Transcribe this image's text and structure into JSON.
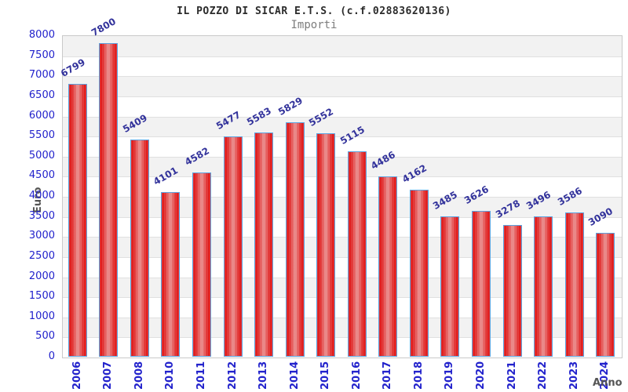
{
  "chart_data": {
    "type": "bar",
    "title": "IL POZZO DI SICAR E.T.S. (c.f.02883620136)",
    "subtitle": "Importi",
    "xlabel": "Anno",
    "ylabel": "Euro",
    "categories": [
      "2006",
      "2007",
      "2008",
      "2010",
      "2011",
      "2012",
      "2013",
      "2014",
      "2015",
      "2016",
      "2017",
      "2018",
      "2019",
      "2020",
      "2021",
      "2022",
      "2023",
      "2024"
    ],
    "values": [
      6799,
      7800,
      5409,
      4101,
      4582,
      5477,
      5583,
      5829,
      5552,
      5115,
      4486,
      4162,
      3485,
      3626,
      3278,
      3496,
      3586,
      3090
    ],
    "yticks": [
      0,
      500,
      1000,
      1500,
      2000,
      2500,
      3000,
      3500,
      4000,
      4500,
      5000,
      5500,
      6000,
      6500,
      7000,
      7500,
      8000
    ],
    "ylim": [
      0,
      8000
    ],
    "ytick_step": 500,
    "grid": "horizontal-bands-alternating",
    "legend": "none",
    "bar_labels_rotated": true,
    "colors": {
      "title": "#2b2b2b",
      "subtitle": "#7d7d7d",
      "axis_title": "#555555",
      "tick_label": "#2222cc",
      "value_label": "#32329b",
      "bar_fill_edge": "#e02020",
      "bar_fill_center": "#ea8f8f",
      "bar_border": "#5ba3e0",
      "band_gray": "#f2f2f2",
      "band_white": "#ffffff",
      "gridline": "#e0e0e0",
      "plot_border": "#c9c9c9"
    }
  }
}
